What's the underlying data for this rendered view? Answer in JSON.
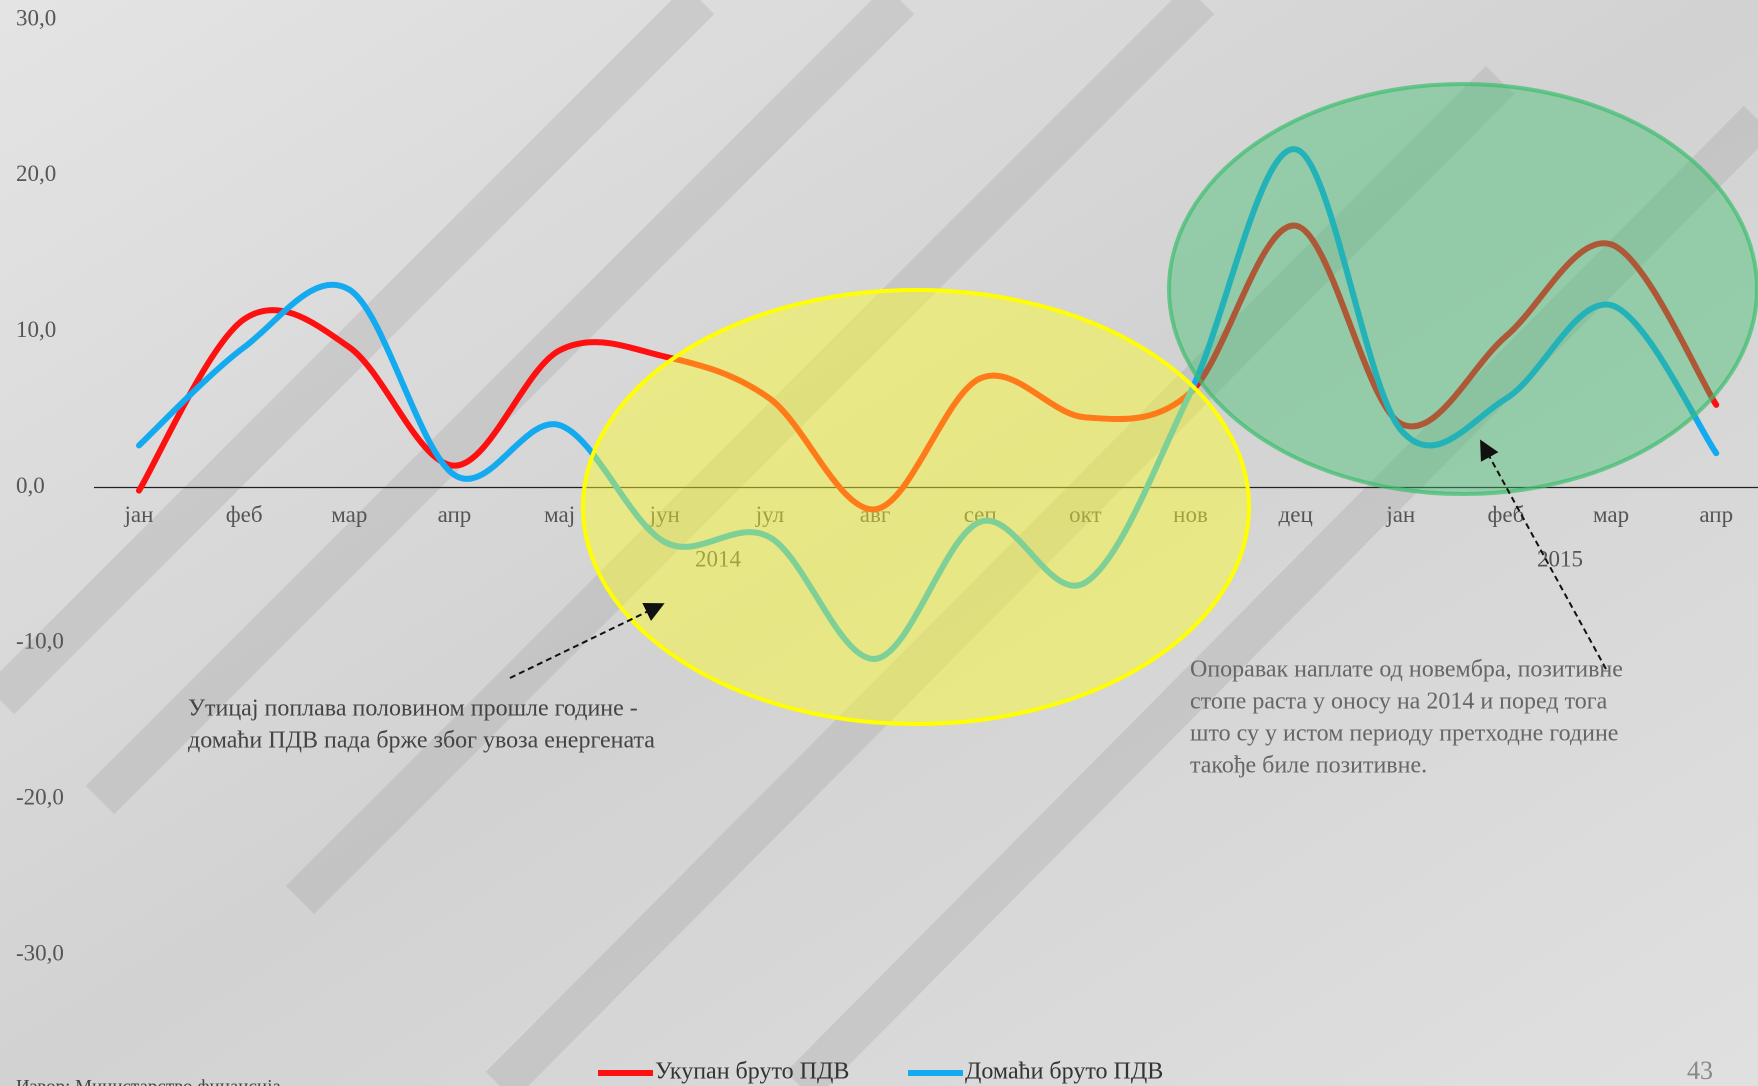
{
  "chart_data": {
    "type": "line",
    "categories": [
      "јан",
      "феб",
      "мар",
      "апр",
      "мај",
      "јун",
      "јул",
      "авг",
      "сеп",
      "окт",
      "нов",
      "дец",
      "јан",
      "феб",
      "мар",
      "апр"
    ],
    "year_labels": [
      "2014",
      "2015"
    ],
    "series": [
      {
        "name": "Укупан бруто ПДВ",
        "color": "#ff1010",
        "values": [
          -0.2,
          10.8,
          9.0,
          1.4,
          8.8,
          8.4,
          5.7,
          -1.4,
          7.0,
          4.5,
          6.1,
          16.8,
          4.1,
          9.7,
          15.6,
          5.3
        ]
      },
      {
        "name": "Домаћи бруто ПДВ",
        "color": "#14aaf0",
        "values": [
          2.7,
          9.0,
          12.7,
          0.8,
          4.0,
          -3.5,
          -3.2,
          -11.0,
          -2.2,
          -6.1,
          6.1,
          21.7,
          3.7,
          5.7,
          11.7,
          2.2
        ]
      }
    ],
    "ylim": [
      -30,
      30
    ],
    "yticks": [
      {
        "value": 30,
        "label": "30,0"
      },
      {
        "value": 20,
        "label": "20,0"
      },
      {
        "value": 10,
        "label": "10,0"
      },
      {
        "value": 0,
        "label": "0,0"
      },
      {
        "value": -10,
        "label": "-10,0"
      },
      {
        "value": -20,
        "label": "-20,0"
      },
      {
        "value": -30,
        "label": "-30,0"
      }
    ],
    "annotations": [
      [
        "Утицај поплава половином прошле године -",
        "домаћи ПДВ пада брже због увоза енергената"
      ],
      [
        "Опоравак наплате од новембра, позитивне",
        "стопе раста у оносу на 2014 и поред тога",
        "што су у истом периоду претходне године",
        "такође биле позитивне."
      ]
    ],
    "legend": "bottom",
    "page_number": "43",
    "source": "Извор: Министарство финансија"
  }
}
